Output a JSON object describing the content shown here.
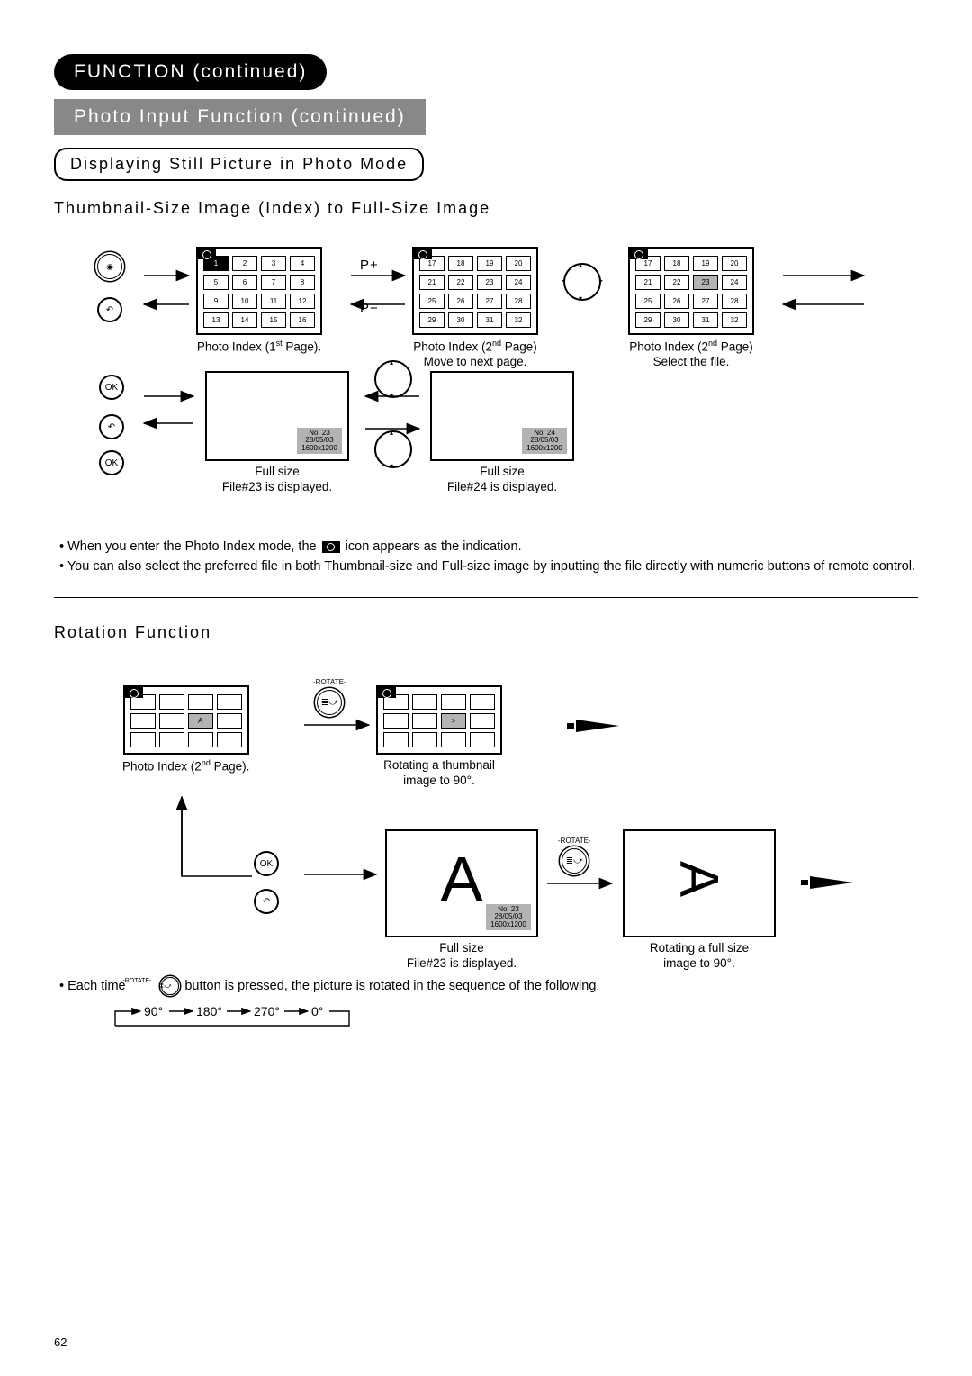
{
  "header": {
    "pill1": "FUNCTION (continued)",
    "pill2": "Photo Input Function (continued)",
    "boxed": "Displaying Still Picture in Photo Mode",
    "sub": "Thumbnail-Size Image (Index) to Full-Size Image"
  },
  "grids": {
    "page1": {
      "cells": [
        1,
        2,
        3,
        4,
        5,
        6,
        7,
        8,
        9,
        10,
        11,
        12,
        13,
        14,
        15,
        16
      ],
      "highlight": 0,
      "caption_prefix": "Photo Index (1",
      "caption_sup": "st",
      "caption_suffix": " Page)."
    },
    "page2a": {
      "cells": [
        17,
        18,
        19,
        20,
        21,
        22,
        23,
        24,
        25,
        26,
        27,
        28,
        29,
        30,
        31,
        32
      ],
      "caption_prefix": "Photo Index (2",
      "caption_sup": "nd",
      "caption_suffix": " Page)",
      "sub": "Move to next page."
    },
    "page2b": {
      "cells": [
        17,
        18,
        19,
        20,
        21,
        22,
        23,
        24,
        25,
        26,
        27,
        28,
        29,
        30,
        31,
        32
      ],
      "gray_index": 6,
      "caption_prefix": "Photo Index (2",
      "caption_sup": "nd",
      "caption_suffix": " Page)",
      "sub": "Select the file."
    }
  },
  "page_labels": {
    "Pplus": "P+",
    "Pminus": "P−"
  },
  "full": {
    "f23": {
      "no": "No. 23",
      "date": "28/05/03",
      "res": "1600x1200",
      "label1": "Full size",
      "label2": "File#23 is displayed."
    },
    "f24": {
      "no": "No. 24",
      "date": "28/05/03",
      "res": "1600x1200",
      "label1": "Full size",
      "label2": "File#24 is displayed."
    }
  },
  "buttons": {
    "ok": "OK",
    "back": "",
    "rotate_label": "-ROTATE-"
  },
  "notes": {
    "n1a": "When you enter the Photo Index mode, the ",
    "n1b": " icon appears as the indication.",
    "n2": "You can also select the preferred file in both Thumbnail-size and Full-size image by inputting the file directly with numeric buttons of remote control."
  },
  "rotation": {
    "title": "Rotation Function",
    "idx_caption_prefix": "Photo Index (2",
    "idx_caption_sup": "nd",
    "idx_caption_suffix": " Page).",
    "thumb_caption1": "Rotating a thumbnail",
    "thumb_caption2": "image to 90°.",
    "full_caption1": "Full size",
    "full_caption2": "File#23 is displayed.",
    "rot_caption1": "Rotating a full size",
    "rot_caption2": "image to 90°.",
    "info": {
      "no": "No. 23",
      "date": "28/05/03",
      "res": "1600x1200"
    },
    "note_a": "Each time ",
    "note_b": " button is pressed, the picture is rotated in the sequence of the following.",
    "seq": [
      "90°",
      "180°",
      "270°",
      "0°"
    ]
  },
  "page_number": "62",
  "symbols": {
    "A": "A",
    "Arot": ">"
  }
}
